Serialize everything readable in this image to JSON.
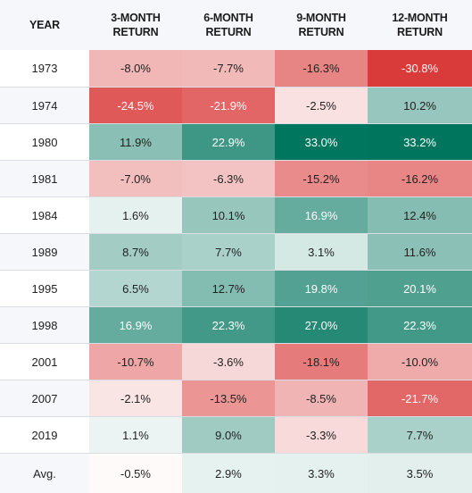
{
  "chart_data": {
    "type": "table",
    "columns": [
      "YEAR",
      "3-MONTH\nRETURN",
      "6-MONTH\nRETURN",
      "9-MONTH\nRETURN",
      "12-MONTH\nRETURN"
    ],
    "rows": [
      {
        "year": "1973",
        "values": [
          "-8.0%",
          "-7.7%",
          "-16.3%",
          "-30.8%"
        ],
        "nums": [
          -8.0,
          -7.7,
          -16.3,
          -30.8
        ]
      },
      {
        "year": "1974",
        "values": [
          "-24.5%",
          "-21.9%",
          "-2.5%",
          "10.2%"
        ],
        "nums": [
          -24.5,
          -21.9,
          -2.5,
          10.2
        ]
      },
      {
        "year": "1980",
        "values": [
          "11.9%",
          "22.9%",
          "33.0%",
          "33.2%"
        ],
        "nums": [
          11.9,
          22.9,
          33.0,
          33.2
        ]
      },
      {
        "year": "1981",
        "values": [
          "-7.0%",
          "-6.3%",
          "-15.2%",
          "-16.2%"
        ],
        "nums": [
          -7.0,
          -6.3,
          -15.2,
          -16.2
        ]
      },
      {
        "year": "1984",
        "values": [
          "1.6%",
          "10.1%",
          "16.9%",
          "12.4%"
        ],
        "nums": [
          1.6,
          10.1,
          16.9,
          12.4
        ]
      },
      {
        "year": "1989",
        "values": [
          "8.7%",
          "7.7%",
          "3.1%",
          "11.6%"
        ],
        "nums": [
          8.7,
          7.7,
          3.1,
          11.6
        ]
      },
      {
        "year": "1995",
        "values": [
          "6.5%",
          "12.7%",
          "19.8%",
          "20.1%"
        ],
        "nums": [
          6.5,
          12.7,
          19.8,
          20.1
        ]
      },
      {
        "year": "1998",
        "values": [
          "16.9%",
          "22.3%",
          "27.0%",
          "22.3%"
        ],
        "nums": [
          16.9,
          22.3,
          27.0,
          22.3
        ]
      },
      {
        "year": "2001",
        "values": [
          "-10.7%",
          "-3.6%",
          "-18.1%",
          "-10.0%"
        ],
        "nums": [
          -10.7,
          -3.6,
          -18.1,
          -10.0
        ]
      },
      {
        "year": "2007",
        "values": [
          "-2.1%",
          "-13.5%",
          "-8.5%",
          "-21.7%"
        ],
        "nums": [
          -2.1,
          -13.5,
          -8.5,
          -21.7
        ]
      },
      {
        "year": "2019",
        "values": [
          "1.1%",
          "9.0%",
          "-3.3%",
          "7.7%"
        ],
        "nums": [
          1.1,
          9.0,
          -3.3,
          7.7
        ]
      },
      {
        "year": "Avg.",
        "values": [
          "-0.5%",
          "2.9%",
          "3.3%",
          "3.5%"
        ],
        "nums": [
          -0.5,
          2.9,
          3.3,
          3.5
        ]
      }
    ],
    "colors": {
      "positive_max": "#00755e",
      "negative_max": "#d93a3a",
      "neutral": "#ffffff",
      "header_bg": "#f5f7fa",
      "row_alt_bg": "#f5f7fa",
      "separator": "#d9dde2"
    }
  }
}
